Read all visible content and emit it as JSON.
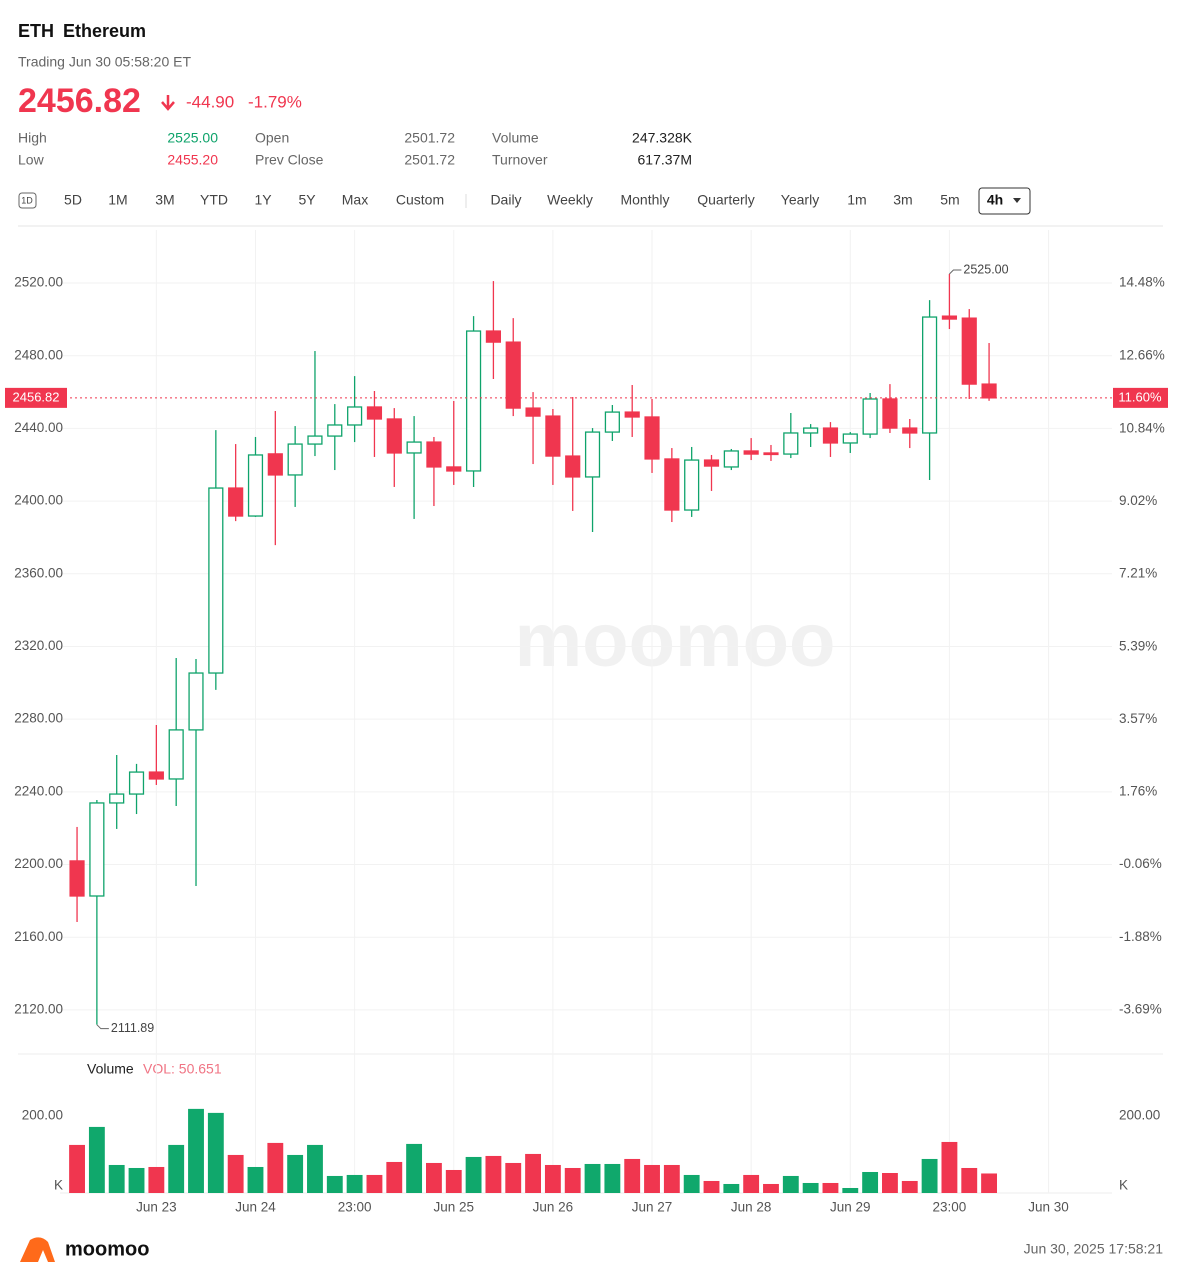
{
  "header": {
    "symbol": "ETH",
    "name": "Ethereum",
    "status": "Trading Jun 30 05:58:20 ET",
    "price": "2456.82",
    "change": "-44.90",
    "change_pct": "-1.79%"
  },
  "stats": [
    {
      "label": "High",
      "value": "2525.00"
    },
    {
      "label": "Low",
      "value": "2455.20"
    },
    {
      "label": "Open",
      "value": "2501.72"
    },
    {
      "label": "Prev Close",
      "value": "2501.72"
    },
    {
      "label": "Volume",
      "value": "247.328K"
    },
    {
      "label": "Turnover",
      "value": "617.37M"
    }
  ],
  "toolbar": {
    "ranges": [
      "1D",
      "5D",
      "1M",
      "3M",
      "YTD",
      "1Y",
      "5Y",
      "Max",
      "Custom"
    ],
    "intervals": [
      "Daily",
      "Weekly",
      "Monthly",
      "Quarterly",
      "Yearly",
      "1m",
      "3m",
      "5m",
      "4h"
    ]
  },
  "chart_data": {
    "type": "candlestick",
    "up_color": "#0fa36b",
    "down_color": "#f0364f",
    "grid": true,
    "watermark": "moomoo",
    "open": [
      2202.0,
      2182.7,
      2233.9,
      2238.8,
      2250.9,
      2247.1,
      2274.1,
      2305.4,
      2407.2,
      2391.8,
      2426.0,
      2414.4,
      2431.4,
      2435.8,
      2441.9,
      2451.8,
      2445.2,
      2426.5,
      2432.5,
      2418.8,
      2416.6,
      2493.6,
      2487.5,
      2451.2,
      2446.8,
      2424.8,
      2413.3,
      2438.0,
      2449.0,
      2446.3,
      2423.2,
      2395.1,
      2422.6,
      2418.8,
      2427.6,
      2426.5,
      2425.9,
      2437.5,
      2440.2,
      2432.0,
      2436.9,
      2456.2,
      2440.2,
      2437.5,
      2501.8,
      2500.7,
      2464.4
    ],
    "high": [
      2220.7,
      2235.5,
      2260.3,
      2255.4,
      2276.8,
      2313.7,
      2313.1,
      2439.1,
      2431.4,
      2435.3,
      2449.6,
      2441.3,
      2482.6,
      2453.4,
      2468.8,
      2460.6,
      2451.2,
      2446.8,
      2435.3,
      2455.1,
      2501.8,
      2521.1,
      2500.7,
      2460.0,
      2450.7,
      2457.3,
      2440.2,
      2452.9,
      2463.9,
      2456.2,
      2429.2,
      2429.8,
      2425.4,
      2428.7,
      2434.7,
      2430.9,
      2448.5,
      2442.4,
      2443.5,
      2438.0,
      2459.5,
      2464.4,
      2445.2,
      2510.6,
      2525.0,
      2505.7,
      2487.0
    ],
    "low": [
      2168.4,
      2111.89,
      2219.6,
      2227.8,
      2243.8,
      2232.2,
      2188.2,
      2296.1,
      2389.0,
      2391.3,
      2375.8,
      2396.8,
      2424.8,
      2417.1,
      2432.5,
      2424.3,
      2407.8,
      2390.2,
      2397.3,
      2408.9,
      2407.8,
      2467.2,
      2446.8,
      2420.4,
      2408.9,
      2394.6,
      2383.0,
      2433.1,
      2435.3,
      2415.5,
      2388.5,
      2391.3,
      2405.6,
      2417.1,
      2422.6,
      2422.1,
      2423.7,
      2429.8,
      2424.3,
      2426.5,
      2434.7,
      2437.5,
      2429.2,
      2411.6,
      2494.7,
      2456.2,
      2455.2
    ],
    "close": [
      2182.7,
      2233.9,
      2238.8,
      2250.9,
      2247.1,
      2274.1,
      2305.4,
      2407.2,
      2391.8,
      2425.4,
      2414.4,
      2431.4,
      2435.8,
      2441.9,
      2451.8,
      2445.2,
      2426.5,
      2432.5,
      2418.8,
      2416.6,
      2493.6,
      2487.5,
      2451.2,
      2446.8,
      2424.8,
      2413.3,
      2438.0,
      2449.0,
      2446.3,
      2423.2,
      2395.1,
      2422.6,
      2419.3,
      2427.6,
      2425.9,
      2425.9,
      2437.5,
      2440.2,
      2432.0,
      2436.9,
      2456.2,
      2440.2,
      2437.5,
      2501.3,
      2500.2,
      2464.4,
      2456.82
    ],
    "xlim": [
      -0.86,
      52.2
    ],
    "xticks": [
      {
        "value": 4,
        "label": "Jun 23"
      },
      {
        "value": 9,
        "label": "Jun 24"
      },
      {
        "value": 14,
        "label": "23:00"
      },
      {
        "value": 19,
        "label": "Jun 25"
      },
      {
        "value": 24,
        "label": "Jun 26"
      },
      {
        "value": 29,
        "label": "Jun 27"
      },
      {
        "value": 34,
        "label": "Jun 28"
      },
      {
        "value": 39,
        "label": "Jun 29"
      },
      {
        "value": 44,
        "label": "23:00"
      },
      {
        "value": 49,
        "label": "Jun 30"
      }
    ],
    "ylim": [
      2095.2,
      2549.2
    ],
    "yticks": [
      {
        "value": 2120,
        "label": "2120.00"
      },
      {
        "value": 2160,
        "label": "2160.00"
      },
      {
        "value": 2200,
        "label": "2200.00"
      },
      {
        "value": 2240,
        "label": "2240.00"
      },
      {
        "value": 2280,
        "label": "2280.00"
      },
      {
        "value": 2320,
        "label": "2320.00"
      },
      {
        "value": 2360,
        "label": "2360.00"
      },
      {
        "value": 2400,
        "label": "2400.00"
      },
      {
        "value": 2440,
        "label": "2440.00"
      },
      {
        "value": 2480,
        "label": "2480.00"
      },
      {
        "value": 2520,
        "label": "2520.00"
      }
    ],
    "y2lim": [
      -4.82,
      15.81
    ],
    "y2ticks": [
      {
        "value": -3.69,
        "label": "-3.69%"
      },
      {
        "value": -1.88,
        "label": "-1.88%"
      },
      {
        "value": -0.06,
        "label": "-0.06%"
      },
      {
        "value": 1.76,
        "label": "1.76%"
      },
      {
        "value": 3.57,
        "label": "3.57%"
      },
      {
        "value": 5.39,
        "label": "5.39%"
      },
      {
        "value": 7.21,
        "label": "7.21%"
      },
      {
        "value": 9.02,
        "label": "9.02%"
      },
      {
        "value": 10.84,
        "label": "10.84%"
      },
      {
        "value": 12.66,
        "label": "12.66%"
      },
      {
        "value": 14.48,
        "label": "14.48%"
      }
    ],
    "current": {
      "value": 2456.82,
      "pct": {
        "value": 11.6,
        "label": "11.60%"
      }
    },
    "annotations": [
      {
        "text": "2525.00",
        "value": 2525.0
      },
      {
        "text": "2111.89",
        "value": 2111.89
      }
    ],
    "volume": {
      "title": "Volume",
      "label": "VOL: 50.651",
      "unit": "K",
      "ylim": [
        0,
        345
      ],
      "yticks": [
        {
          "value": 200,
          "label": "200.00"
        }
      ],
      "values": [
        124.7,
        171.4,
        72.7,
        64.9,
        67.5,
        124.7,
        218.2,
        207.8,
        98.7,
        67.5,
        129.9,
        98.7,
        124.7,
        44.2,
        46.8,
        46.8,
        80.5,
        127.3,
        77.9,
        59.7,
        93.5,
        96.1,
        77.9,
        101.3,
        72.7,
        64.9,
        75.3,
        75.3,
        88.3,
        72.7,
        72.7,
        46.8,
        31.2,
        23.4,
        46.8,
        23.4,
        44.2,
        26.0,
        26.0,
        13.0,
        54.5,
        51.9,
        31.2,
        88.3,
        132.4,
        64.9,
        50.651
      ]
    }
  },
  "footer": {
    "brand": "moomoo",
    "timestamp": "Jun 30, 2025 17:58:21"
  }
}
